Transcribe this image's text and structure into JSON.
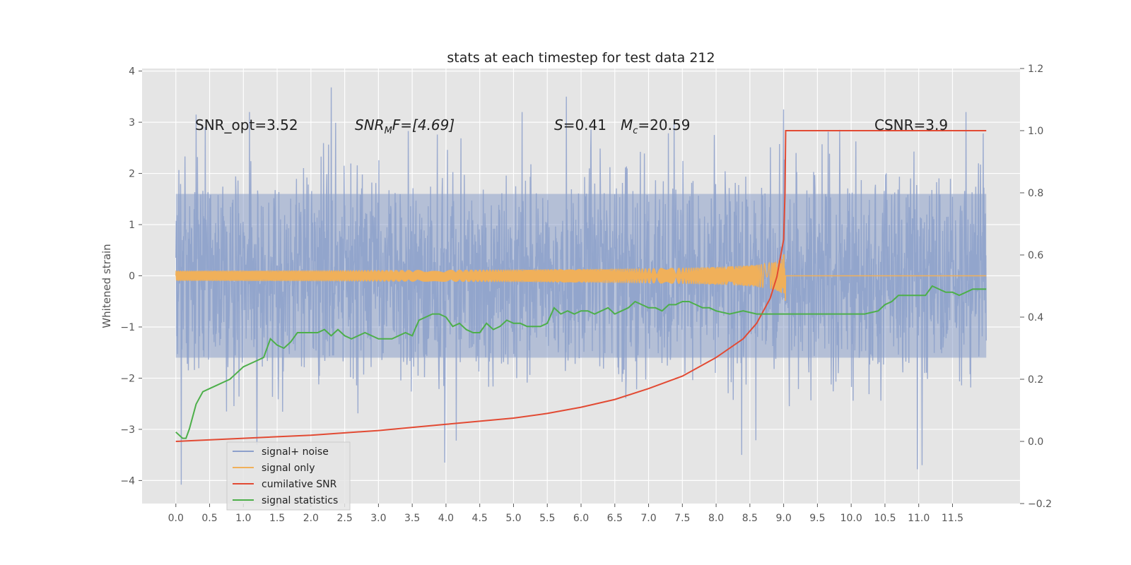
{
  "chart_data": {
    "type": "line",
    "title": "stats at each timestep for test data 212",
    "ylabel": "Whitened strain",
    "y2label": "",
    "xlim": [
      -0.5,
      12.5
    ],
    "ylim": [
      -4.45,
      4.05
    ],
    "y2lim": [
      -0.2,
      1.2
    ],
    "x_ticks": [
      0.0,
      0.5,
      1.0,
      1.5,
      2.0,
      2.5,
      3.0,
      3.5,
      4.0,
      4.5,
      5.0,
      5.5,
      6.0,
      6.5,
      7.0,
      7.5,
      8.0,
      8.5,
      9.0,
      9.5,
      10.0,
      10.5,
      11.0,
      11.5
    ],
    "x_tick_labels": [
      "0.0",
      "0.5",
      "1.0",
      "1.5",
      "2.0",
      "2.5",
      "3.0",
      "3.5",
      "4.0",
      "4.5",
      "5.0",
      "5.5",
      "6.0",
      "6.5",
      "7.0",
      "7.5",
      "8.0",
      "8.5",
      "9.0",
      "9.5",
      "10.0",
      "10.5",
      "11.0",
      "11.5"
    ],
    "y_ticks": [
      -4,
      -3,
      -2,
      -1,
      0,
      1,
      2,
      3,
      4
    ],
    "y_tick_labels": [
      "−4",
      "−3",
      "−2",
      "−1",
      "0",
      "1",
      "2",
      "3",
      "4"
    ],
    "y2_ticks": [
      -0.2,
      0.0,
      0.2,
      0.4,
      0.6,
      0.8,
      1.0,
      1.2
    ],
    "y2_tick_labels": [
      "−0.2",
      "0.0",
      "0.2",
      "0.4",
      "0.6",
      "0.8",
      "1.0",
      "1.2"
    ],
    "grid": true,
    "legend_position": "lower-left",
    "annotations": {
      "snr_opt": "SNR_opt=3.52",
      "snr_mf_main": "SNR",
      "snr_mf_sub": "M",
      "snr_mf_rest": "F=[4.69]",
      "s_sym": "S",
      "s_val": "=0.41",
      "mc_sym": "M",
      "mc_sub": "c",
      "mc_val": "=20.59",
      "csnr": "CSNR=3.9"
    },
    "series": [
      {
        "name": "signal+ noise",
        "axis": "left",
        "color": "#8da0cb",
        "kind": "noise",
        "x_range": [
          0.0,
          12.0
        ],
        "envelope_typical": [
          -1.6,
          1.6
        ],
        "extremes": [
          {
            "x": 0.08,
            "y": -4.08
          },
          {
            "x": 2.3,
            "y": 3.68
          },
          {
            "x": 3.98,
            "y": -3.65
          },
          {
            "x": 5.78,
            "y": 3.5
          },
          {
            "x": 8.38,
            "y": -3.5
          },
          {
            "x": 10.98,
            "y": -3.78
          },
          {
            "x": 11.05,
            "y": -3.7
          },
          {
            "x": 9.0,
            "y": 3.25
          },
          {
            "x": 11.7,
            "y": 3.2
          },
          {
            "x": 0.3,
            "y": 3.15
          },
          {
            "x": 1.2,
            "y": -3.3
          }
        ]
      },
      {
        "name": "signal only",
        "axis": "left",
        "color": "#f0b05a",
        "kind": "chirp",
        "x_range": [
          0.0,
          9.03
        ],
        "peak_amplitude": 0.7
      },
      {
        "name": "cumilative SNR",
        "axis": "right",
        "color": "#e24a33",
        "x": [
          0.0,
          1.0,
          2.0,
          3.0,
          4.0,
          5.0,
          5.5,
          6.0,
          6.5,
          7.0,
          7.5,
          8.0,
          8.4,
          8.6,
          8.8,
          8.9,
          9.0,
          9.02,
          9.03,
          10.0,
          11.0,
          12.0
        ],
        "values": [
          0.0,
          0.01,
          0.02,
          0.035,
          0.055,
          0.075,
          0.09,
          0.11,
          0.135,
          0.17,
          0.21,
          0.27,
          0.33,
          0.38,
          0.46,
          0.53,
          0.65,
          0.8,
          1.0,
          1.0,
          1.0,
          1.0
        ]
      },
      {
        "name": "signal statistics",
        "axis": "right",
        "color": "#4daf4a",
        "x": [
          0.0,
          0.05,
          0.1,
          0.15,
          0.2,
          0.3,
          0.4,
          0.5,
          0.6,
          0.7,
          0.8,
          0.9,
          1.0,
          1.1,
          1.2,
          1.3,
          1.4,
          1.5,
          1.6,
          1.7,
          1.8,
          1.9,
          2.0,
          2.1,
          2.2,
          2.3,
          2.4,
          2.5,
          2.6,
          2.7,
          2.8,
          2.9,
          3.0,
          3.1,
          3.2,
          3.3,
          3.4,
          3.5,
          3.6,
          3.7,
          3.8,
          3.9,
          4.0,
          4.1,
          4.2,
          4.3,
          4.4,
          4.5,
          4.6,
          4.7,
          4.8,
          4.9,
          5.0,
          5.1,
          5.2,
          5.3,
          5.4,
          5.5,
          5.6,
          5.7,
          5.8,
          5.9,
          6.0,
          6.1,
          6.2,
          6.3,
          6.4,
          6.5,
          6.6,
          6.7,
          6.8,
          6.9,
          7.0,
          7.1,
          7.2,
          7.3,
          7.4,
          7.5,
          7.6,
          7.7,
          7.8,
          7.9,
          8.0,
          8.2,
          8.4,
          8.6,
          8.8,
          9.0,
          9.2,
          9.4,
          9.6,
          9.8,
          10.0,
          10.2,
          10.4,
          10.5,
          10.6,
          10.7,
          10.8,
          10.9,
          11.0,
          11.1,
          11.2,
          11.3,
          11.4,
          11.5,
          11.6,
          11.7,
          11.8,
          11.9,
          12.0
        ],
        "values": [
          0.03,
          0.02,
          0.01,
          0.01,
          0.04,
          0.12,
          0.16,
          0.17,
          0.18,
          0.19,
          0.2,
          0.22,
          0.24,
          0.25,
          0.26,
          0.27,
          0.33,
          0.31,
          0.3,
          0.32,
          0.35,
          0.35,
          0.35,
          0.35,
          0.36,
          0.34,
          0.36,
          0.34,
          0.33,
          0.34,
          0.35,
          0.34,
          0.33,
          0.33,
          0.33,
          0.34,
          0.35,
          0.34,
          0.39,
          0.4,
          0.41,
          0.41,
          0.4,
          0.37,
          0.38,
          0.36,
          0.35,
          0.35,
          0.38,
          0.36,
          0.37,
          0.39,
          0.38,
          0.38,
          0.37,
          0.37,
          0.37,
          0.38,
          0.43,
          0.41,
          0.42,
          0.41,
          0.42,
          0.42,
          0.41,
          0.42,
          0.43,
          0.41,
          0.42,
          0.43,
          0.45,
          0.44,
          0.43,
          0.43,
          0.42,
          0.44,
          0.44,
          0.45,
          0.45,
          0.44,
          0.43,
          0.43,
          0.42,
          0.41,
          0.42,
          0.41,
          0.41,
          0.41,
          0.41,
          0.41,
          0.41,
          0.41,
          0.41,
          0.41,
          0.42,
          0.44,
          0.45,
          0.47,
          0.47,
          0.47,
          0.47,
          0.47,
          0.5,
          0.49,
          0.48,
          0.48,
          0.47,
          0.48,
          0.49,
          0.49,
          0.49
        ]
      }
    ]
  }
}
